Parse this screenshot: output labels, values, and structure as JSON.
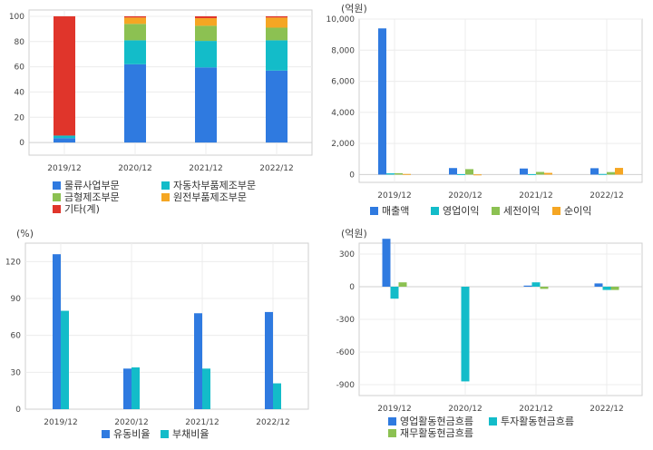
{
  "chart_data": [
    {
      "id": "segment-share",
      "type": "bar",
      "stacked": true,
      "unit": "",
      "categories": [
        "2019/12",
        "2020/12",
        "2021/12",
        "2022/12"
      ],
      "ylim": [
        -10,
        105
      ],
      "yticks": [
        0,
        20,
        40,
        60,
        80,
        100
      ],
      "grid": true,
      "legend_position": "bottom",
      "legend_columns": 2,
      "series": [
        {
          "name": "물류사업부문",
          "color": "#2f7ae0",
          "values": [
            3.5,
            62,
            59.5,
            57
          ]
        },
        {
          "name": "자동차부품제조부문",
          "color": "#13bcc9",
          "values": [
            2,
            19,
            21,
            24
          ]
        },
        {
          "name": "금형제조부문",
          "color": "#8cc152",
          "values": [
            0,
            13,
            12,
            10
          ]
        },
        {
          "name": "원전부품제조부문",
          "color": "#f5a623",
          "values": [
            0,
            5,
            6,
            8
          ]
        },
        {
          "name": "기타(계)",
          "color": "#e0352b",
          "values": [
            94.5,
            1,
            1.5,
            1
          ]
        }
      ]
    },
    {
      "id": "income-statement",
      "type": "bar",
      "unit": "(억원)",
      "categories": [
        "2019/12",
        "2020/12",
        "2021/12",
        "2022/12"
      ],
      "ylim": [
        -500,
        10000
      ],
      "yticks": [
        0,
        2000,
        4000,
        6000,
        8000,
        10000
      ],
      "ytick_labels": [
        "0",
        "2,000",
        "4,000",
        "6,000",
        "8,000",
        "10,000"
      ],
      "grid": true,
      "legend_position": "bottom",
      "legend_columns": 4,
      "series": [
        {
          "name": "매출액",
          "color": "#2f7ae0",
          "values": [
            9400,
            420,
            390,
            410
          ]
        },
        {
          "name": "영업이익",
          "color": "#13bcc9",
          "values": [
            80,
            30,
            30,
            40
          ]
        },
        {
          "name": "세전이익",
          "color": "#8cc152",
          "values": [
            90,
            350,
            170,
            160
          ]
        },
        {
          "name": "순이익",
          "color": "#f5a623",
          "values": [
            40,
            10,
            110,
            430
          ]
        }
      ]
    },
    {
      "id": "liquidity-ratios",
      "type": "bar",
      "unit": "(%)",
      "categories": [
        "2019/12",
        "2020/12",
        "2021/12",
        "2022/12"
      ],
      "ylim": [
        0,
        135
      ],
      "yticks": [
        0,
        30,
        60,
        90,
        120
      ],
      "grid": true,
      "legend_position": "bottom",
      "legend_columns": 2,
      "series": [
        {
          "name": "유동비율",
          "color": "#2f7ae0",
          "values": [
            126,
            33,
            78,
            79
          ]
        },
        {
          "name": "부채비율",
          "color": "#13bcc9",
          "values": [
            80,
            34,
            33,
            21
          ]
        }
      ]
    },
    {
      "id": "cash-flows",
      "type": "bar",
      "unit": "(억원)",
      "categories": [
        "2019/12",
        "2020/12",
        "2021/12",
        "2022/12"
      ],
      "ylim": [
        -1000,
        400
      ],
      "yticks": [
        -900,
        -600,
        -300,
        0,
        300
      ],
      "grid": true,
      "legend_position": "bottom",
      "legend_columns": 2,
      "series": [
        {
          "name": "영업활동현금흐름",
          "color": "#2f7ae0",
          "values": [
            440,
            0,
            10,
            30
          ]
        },
        {
          "name": "투자활동현금흐름",
          "color": "#13bcc9",
          "values": [
            -110,
            -870,
            40,
            -30
          ]
        },
        {
          "name": "재무활동현금흐름",
          "color": "#8cc152",
          "values": [
            40,
            0,
            -20,
            -30
          ]
        }
      ]
    }
  ]
}
